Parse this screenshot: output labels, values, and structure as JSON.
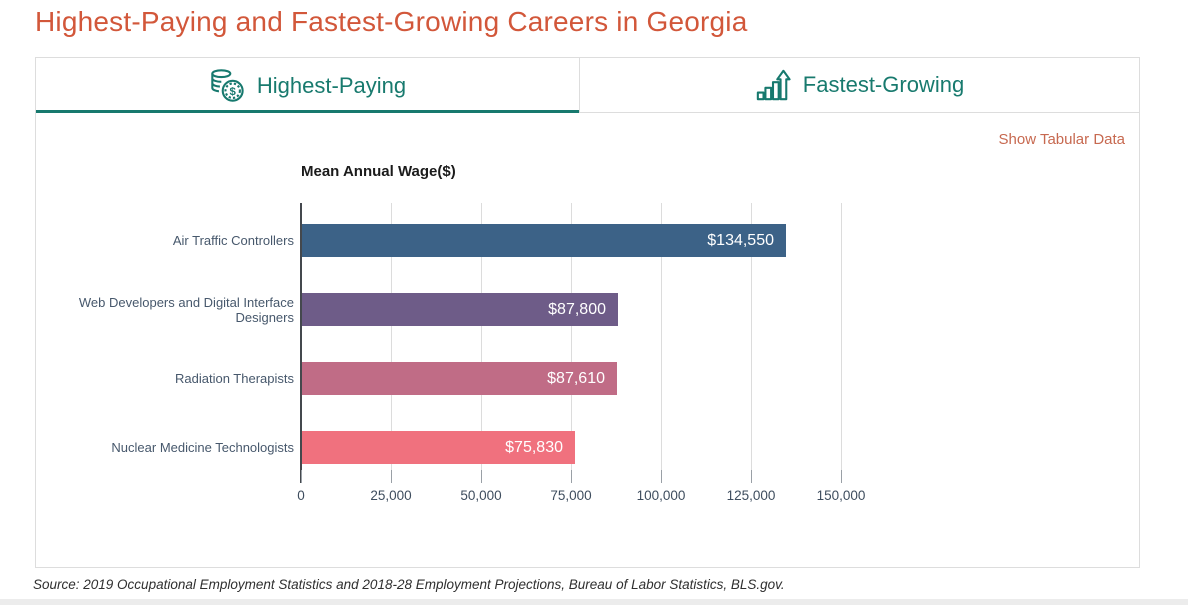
{
  "page": {
    "title": "Highest-Paying and Fastest-Growing Careers in Georgia",
    "accent_color": "#d2573a",
    "teal_color": "#17796e"
  },
  "tabs": [
    {
      "label": "Highest-Paying",
      "icon": "coins-dollar-icon",
      "active": true
    },
    {
      "label": "Fastest-Growing",
      "icon": "growth-chart-icon",
      "active": false
    }
  ],
  "panel": {
    "show_tabular_label": "Show Tabular Data",
    "link_color": "#c76950"
  },
  "chart_data": {
    "type": "bar",
    "orientation": "horizontal",
    "title": "Mean Annual Wage($)",
    "categories": [
      "Air Traffic Controllers",
      "Web Developers and Digital Interface Designers",
      "Radiation Therapists",
      "Nuclear Medicine Technologists"
    ],
    "values": [
      134550,
      87800,
      87610,
      75830
    ],
    "value_labels": [
      "$134,550",
      "$87,800",
      "$87,610",
      "$75,830"
    ],
    "bar_colors": [
      "#3c6287",
      "#6e5c88",
      "#c06c86",
      "#f0717e"
    ],
    "xlim": [
      0,
      150000
    ],
    "x_ticks": [
      0,
      25000,
      50000,
      75000,
      100000,
      125000,
      150000
    ],
    "x_tick_labels": [
      "0",
      "25,000",
      "50,000",
      "75,000",
      "100,000",
      "125,000",
      "150,000"
    ],
    "grid": true,
    "legend": false
  },
  "footer": {
    "source": "Source: 2019 Occupational Employment Statistics and 2018-28 Employment Projections, Bureau of Labor Statistics, BLS.gov."
  }
}
